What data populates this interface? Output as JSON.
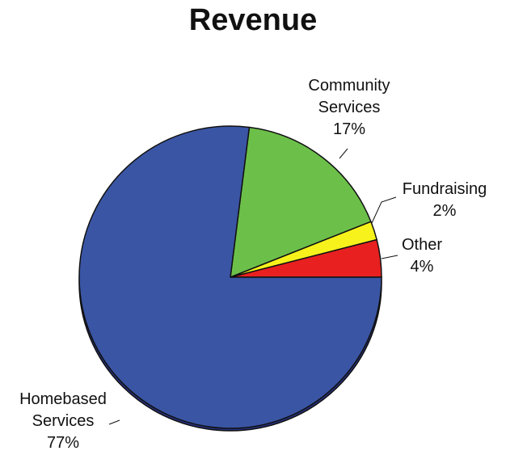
{
  "chart_data": {
    "type": "pie",
    "title": "Revenue",
    "slices": [
      {
        "name_lines": [
          "Other"
        ],
        "label": "Other",
        "percent_label": "4%",
        "value": 4,
        "color": "#e82020"
      },
      {
        "name_lines": [
          "Fundraising"
        ],
        "label": "Fundraising",
        "percent_label": "2%",
        "value": 2,
        "color": "#f7f21c"
      },
      {
        "name_lines": [
          "Community",
          "Services"
        ],
        "label": "Community Services",
        "percent_label": "17%",
        "value": 17,
        "color": "#6cc04a"
      },
      {
        "name_lines": [
          "Homebased",
          "Services"
        ],
        "label": "Homebased Services",
        "percent_label": "77%",
        "value": 77,
        "color": "#3a55a4"
      }
    ],
    "legend": "none",
    "start": "3 o'clock, counter-clockwise",
    "style": "3D disk with dark blue base edge"
  }
}
